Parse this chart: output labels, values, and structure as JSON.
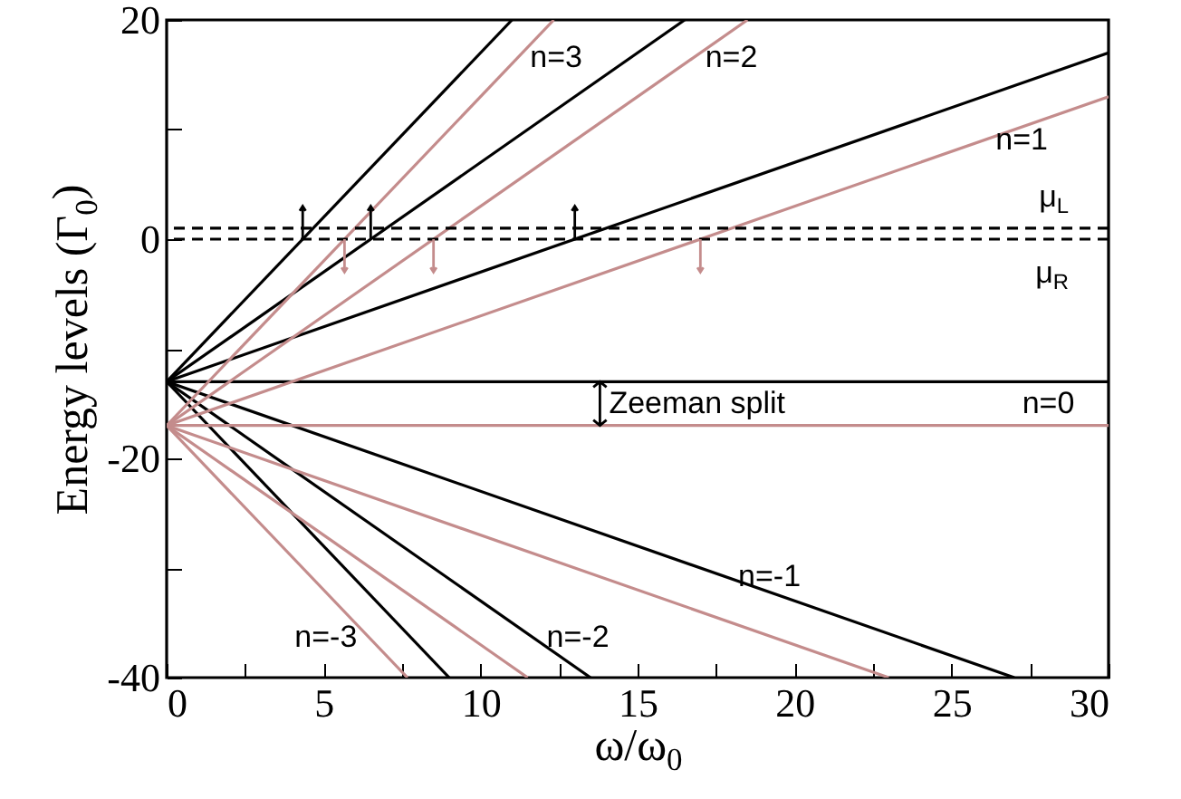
{
  "chart_data": {
    "type": "line",
    "xlabel": "ω/ω$_{0}$",
    "ylabel": "Energy levels (Γ$_{0}$)",
    "xlim": [
      0,
      30
    ],
    "ylim": [
      -40,
      20
    ],
    "xticks": [
      0,
      {
        "value": 2.5,
        "label": null
      },
      5,
      {
        "value": 7.5,
        "label": null
      },
      10,
      {
        "value": 12.5,
        "label": null
      },
      15,
      {
        "value": 17.5,
        "label": null
      },
      20,
      {
        "value": 22.5,
        "label": null
      },
      25,
      {
        "value": 27.5,
        "label": null
      },
      30
    ],
    "yticks": [
      -40,
      {
        "value": -30,
        "label": null
      },
      -20,
      {
        "value": -10,
        "label": null
      },
      0,
      {
        "value": 10,
        "label": null
      },
      20
    ],
    "line_style": "solid",
    "marker": "none",
    "series": [
      {
        "color": "#000000",
        "x": [
          0,
          11
        ],
        "values": [
          -13,
          20
        ]
      },
      {
        "color": "#000000",
        "x": [
          0,
          16.5
        ],
        "values": [
          -13,
          20
        ]
      },
      {
        "color": "#000000",
        "x": [
          0,
          30
        ],
        "values": [
          -13,
          17
        ]
      },
      {
        "color": "#000000",
        "x": [
          0,
          30
        ],
        "values": [
          -13,
          -13
        ]
      },
      {
        "color": "#000000",
        "x": [
          0,
          27
        ],
        "values": [
          -13,
          -40
        ]
      },
      {
        "color": "#000000",
        "x": [
          0,
          13.5
        ],
        "values": [
          -13,
          -40
        ]
      },
      {
        "color": "#000000",
        "x": [
          0,
          9
        ],
        "values": [
          -13,
          -40
        ]
      },
      {
        "color": "#c48c8c",
        "x": [
          0,
          12.33
        ],
        "values": [
          -17,
          20
        ]
      },
      {
        "color": "#c48c8c",
        "x": [
          0,
          18.5
        ],
        "values": [
          -17,
          20
        ]
      },
      {
        "color": "#c48c8c",
        "x": [
          0,
          30
        ],
        "values": [
          -17,
          13
        ]
      },
      {
        "color": "#c48c8c",
        "x": [
          0,
          30
        ],
        "values": [
          -17,
          -17
        ]
      },
      {
        "color": "#c48c8c",
        "x": [
          0,
          23
        ],
        "values": [
          -17,
          -40
        ]
      },
      {
        "color": "#c48c8c",
        "x": [
          0,
          11.5
        ],
        "values": [
          -17,
          -40
        ]
      },
      {
        "color": "#c48c8c",
        "x": [
          0,
          7.67
        ],
        "values": [
          -17,
          -40
        ]
      }
    ],
    "ref_lines": [
      {
        "axis": "y",
        "value": 1,
        "label": "μ$_{L}$",
        "line_style": "dashed",
        "color": "#000000"
      },
      {
        "axis": "y",
        "value": 0,
        "label": "μ$_{R}$",
        "line_style": "dashed",
        "color": "#000000"
      }
    ],
    "annotations": [
      {
        "text": "Zeeman split",
        "x": 13.8,
        "y": -13
      },
      {
        "text": "n=3",
        "x": 11.17,
        "y": 16.5
      },
      {
        "text": "n=2",
        "x": 16.75,
        "y": 16.5
      },
      {
        "text": "n=1",
        "x": 26,
        "y": 9
      },
      {
        "text": "n=0",
        "x": 27.25,
        "y": -13
      },
      {
        "text": "n=-1",
        "x": 17.8,
        "y": -30.8
      },
      {
        "text": "n=-2",
        "x": 11.7,
        "y": -36.4
      },
      {
        "text": "n=-3",
        "x": 6.47,
        "y": -36.4
      }
    ]
  }
}
